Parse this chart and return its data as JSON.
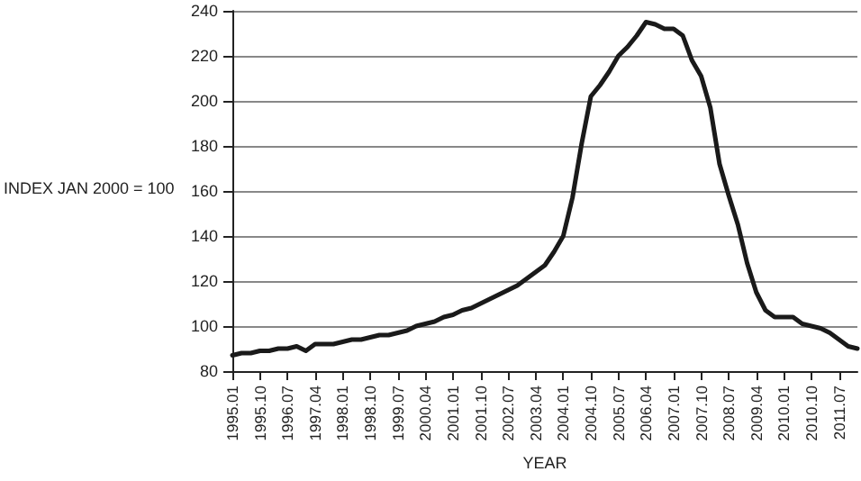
{
  "chart_data": {
    "type": "line",
    "xlabel": "YEAR",
    "ylabel": "INDEX JAN 2000 = 100",
    "categories": [
      "1995.01",
      null,
      null,
      "1995.10",
      null,
      null,
      "1996.07",
      null,
      null,
      "1997.04",
      null,
      null,
      "1998.01",
      null,
      null,
      "1998.10",
      null,
      null,
      "1999.07",
      null,
      null,
      "2000.04",
      null,
      null,
      "2001.01",
      null,
      null,
      "2001.10",
      null,
      null,
      "2002.07",
      null,
      null,
      "2003.04",
      null,
      null,
      "2004.01",
      null,
      null,
      "2004.10",
      null,
      null,
      "2005.07",
      null,
      null,
      "2006.04",
      null,
      null,
      "2007.01",
      null,
      null,
      "2007.10",
      null,
      null,
      "2008.07",
      null,
      null,
      "2009.04",
      null,
      null,
      "2010.01",
      null,
      null,
      "2010.10",
      null,
      null,
      "2011.07",
      null,
      null
    ],
    "series": [
      {
        "color": "#1a1a1a",
        "values": [
          87,
          88,
          88,
          89,
          89,
          90,
          90,
          91,
          89,
          92,
          92,
          92,
          93,
          94,
          94,
          95,
          96,
          96,
          97,
          98,
          100,
          101,
          102,
          104,
          105,
          107,
          108,
          110,
          112,
          114,
          116,
          118,
          121,
          124,
          127,
          133,
          140,
          157,
          181,
          202,
          207,
          213,
          220,
          224,
          229,
          235,
          234,
          232,
          232,
          229,
          218,
          211,
          197,
          172,
          158,
          145,
          128,
          115,
          107,
          104,
          104,
          104,
          101,
          100,
          99,
          97,
          94,
          91,
          90
        ]
      }
    ],
    "ylim": [
      80,
      240
    ],
    "yticks": [
      80,
      100,
      120,
      140,
      160,
      180,
      200,
      220,
      240
    ],
    "grid": "y",
    "marker": "none",
    "line_style": "solid"
  }
}
